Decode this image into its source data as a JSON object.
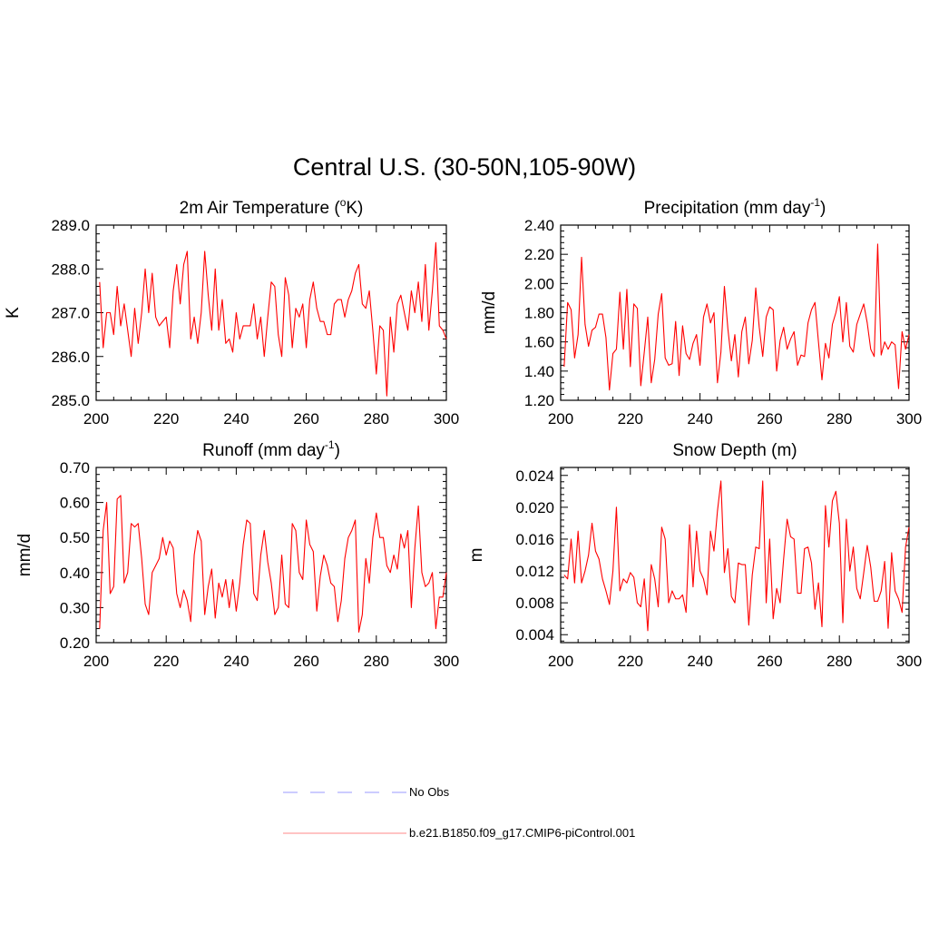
{
  "page": {
    "title": "Central U.S. (30-50N,105-90W)"
  },
  "legend": {
    "items": [
      {
        "label": "No Obs",
        "color": "#9999ff",
        "dash": true
      },
      {
        "label": "b.e21.B1850.f09_g17.CMIP6-piControl.001",
        "color": "#ff8888",
        "dash": false
      }
    ]
  },
  "colors": {
    "series_line": "#ff0000"
  },
  "chart_data": [
    {
      "id": "temp",
      "type": "line",
      "title_main": "2m Air Temperature (",
      "title_sup1": "o",
      "title_post": "K)",
      "ylabel": "K",
      "xlim": [
        200,
        300
      ],
      "ylim": [
        285.0,
        289.0
      ],
      "xticks": [
        "200",
        "220",
        "240",
        "260",
        "280",
        "300"
      ],
      "yticks": [
        "285.0",
        "286.0",
        "287.0",
        "288.0",
        "289.0"
      ],
      "ytick_values": [
        285,
        286,
        287,
        288,
        289
      ],
      "x_start": 201,
      "series": [
        {
          "values": [
            287.7,
            286.2,
            287.0,
            287.0,
            286.5,
            287.6,
            286.7,
            287.2,
            286.6,
            286.0,
            287.1,
            286.3,
            287.0,
            288.0,
            287.0,
            287.9,
            286.9,
            286.7,
            286.8,
            286.9,
            286.2,
            287.5,
            288.1,
            287.2,
            288.1,
            288.4,
            286.4,
            286.9,
            286.3,
            287.0,
            288.4,
            287.4,
            286.6,
            288.0,
            286.6,
            287.3,
            286.3,
            286.4,
            286.1,
            287.0,
            286.4,
            286.7,
            286.7,
            286.7,
            287.2,
            286.4,
            286.9,
            286.0,
            286.9,
            287.7,
            287.6,
            286.5,
            286.0,
            287.8,
            287.4,
            286.2,
            287.1,
            286.9,
            287.2,
            286.2,
            287.3,
            287.7,
            287.1,
            286.8,
            286.8,
            286.5,
            286.5,
            287.2,
            287.3,
            287.3,
            286.9,
            287.3,
            287.5,
            287.9,
            288.1,
            287.2,
            287.1,
            287.5,
            286.6,
            285.6,
            286.7,
            286.6,
            285.1,
            286.9,
            286.1,
            287.2,
            287.4,
            287.0,
            286.6,
            287.5,
            287.0,
            287.7,
            286.8,
            288.1,
            286.6,
            287.5,
            288.6,
            286.7,
            286.6,
            286.4
          ]
        }
      ]
    },
    {
      "id": "precip",
      "type": "line",
      "title_main": "Precipitation (mm day",
      "title_sup1": "-1",
      "title_post": ")",
      "ylabel": "mm/d",
      "xlim": [
        200,
        300
      ],
      "ylim": [
        1.2,
        2.4
      ],
      "xticks": [
        "200",
        "220",
        "240",
        "260",
        "280",
        "300"
      ],
      "yticks": [
        "1.20",
        "1.40",
        "1.60",
        "1.80",
        "2.00",
        "2.20",
        "2.40"
      ],
      "ytick_values": [
        1.2,
        1.4,
        1.6,
        1.8,
        2.0,
        2.2,
        2.4
      ],
      "x_start": 201,
      "series": [
        {
          "values": [
            1.43,
            1.87,
            1.82,
            1.49,
            1.65,
            2.18,
            1.72,
            1.57,
            1.68,
            1.7,
            1.79,
            1.79,
            1.63,
            1.27,
            1.52,
            1.55,
            1.94,
            1.55,
            1.96,
            1.43,
            1.86,
            1.83,
            1.3,
            1.53,
            1.77,
            1.32,
            1.48,
            1.79,
            1.93,
            1.49,
            1.44,
            1.45,
            1.74,
            1.37,
            1.71,
            1.52,
            1.48,
            1.59,
            1.65,
            1.44,
            1.77,
            1.86,
            1.73,
            1.8,
            1.32,
            1.53,
            1.98,
            1.69,
            1.47,
            1.65,
            1.36,
            1.67,
            1.77,
            1.45,
            1.61,
            1.97,
            1.7,
            1.5,
            1.77,
            1.84,
            1.82,
            1.4,
            1.61,
            1.7,
            1.55,
            1.62,
            1.67,
            1.44,
            1.51,
            1.5,
            1.73,
            1.82,
            1.87,
            1.6,
            1.34,
            1.59,
            1.49,
            1.72,
            1.8,
            1.91,
            1.6,
            1.87,
            1.57,
            1.53,
            1.72,
            1.79,
            1.86,
            1.73,
            1.55,
            1.5,
            2.27,
            1.51,
            1.6,
            1.55,
            1.6,
            1.58,
            1.28,
            1.67,
            1.55,
            1.65
          ]
        }
      ]
    },
    {
      "id": "runoff",
      "type": "line",
      "title_main": "Runoff (mm day",
      "title_sup1": "-1",
      "title_post": ")",
      "ylabel": "mm/d",
      "xlim": [
        200,
        300
      ],
      "ylim": [
        0.2,
        0.7
      ],
      "xticks": [
        "200",
        "220",
        "240",
        "260",
        "280",
        "300"
      ],
      "yticks": [
        "0.20",
        "0.30",
        "0.40",
        "0.50",
        "0.60",
        "0.70"
      ],
      "ytick_values": [
        0.2,
        0.3,
        0.4,
        0.5,
        0.6,
        0.7
      ],
      "x_start": 201,
      "series": [
        {
          "values": [
            0.24,
            0.52,
            0.6,
            0.34,
            0.36,
            0.61,
            0.62,
            0.37,
            0.4,
            0.54,
            0.53,
            0.54,
            0.44,
            0.31,
            0.28,
            0.4,
            0.42,
            0.44,
            0.5,
            0.45,
            0.49,
            0.47,
            0.34,
            0.3,
            0.35,
            0.32,
            0.26,
            0.45,
            0.52,
            0.49,
            0.28,
            0.36,
            0.41,
            0.27,
            0.37,
            0.33,
            0.38,
            0.3,
            0.38,
            0.29,
            0.37,
            0.48,
            0.55,
            0.54,
            0.34,
            0.32,
            0.45,
            0.52,
            0.43,
            0.37,
            0.28,
            0.3,
            0.45,
            0.31,
            0.3,
            0.54,
            0.52,
            0.4,
            0.38,
            0.55,
            0.48,
            0.46,
            0.29,
            0.39,
            0.45,
            0.42,
            0.37,
            0.36,
            0.26,
            0.32,
            0.44,
            0.5,
            0.52,
            0.55,
            0.23,
            0.28,
            0.44,
            0.37,
            0.5,
            0.57,
            0.5,
            0.5,
            0.42,
            0.4,
            0.45,
            0.41,
            0.51,
            0.47,
            0.52,
            0.3,
            0.47,
            0.59,
            0.4,
            0.36,
            0.37,
            0.4,
            0.24,
            0.33,
            0.33,
            0.4
          ]
        }
      ]
    },
    {
      "id": "snow",
      "type": "line",
      "title_main": "Snow Depth (m)",
      "title_sup1": "",
      "title_post": "",
      "ylabel": "m",
      "xlim": [
        200,
        300
      ],
      "ylim": [
        0.003,
        0.025
      ],
      "xticks": [
        "200",
        "220",
        "240",
        "260",
        "280",
        "300"
      ],
      "yticks": [
        "0.004",
        "0.008",
        "0.012",
        "0.016",
        "0.020",
        "0.024"
      ],
      "ytick_values": [
        0.004,
        0.008,
        0.012,
        0.016,
        0.02,
        0.024
      ],
      "x_start": 201,
      "series": [
        {
          "values": [
            0.0115,
            0.011,
            0.016,
            0.0105,
            0.017,
            0.0105,
            0.012,
            0.014,
            0.018,
            0.0145,
            0.0135,
            0.011,
            0.0095,
            0.0078,
            0.012,
            0.02,
            0.0095,
            0.011,
            0.0105,
            0.0118,
            0.0112,
            0.008,
            0.0075,
            0.011,
            0.0045,
            0.0128,
            0.011,
            0.0075,
            0.0175,
            0.016,
            0.008,
            0.0095,
            0.0085,
            0.0085,
            0.009,
            0.0068,
            0.0178,
            0.01,
            0.017,
            0.012,
            0.011,
            0.009,
            0.017,
            0.0145,
            0.0195,
            0.0233,
            0.0118,
            0.0148,
            0.0088,
            0.008,
            0.013,
            0.0128,
            0.0128,
            0.0052,
            0.0115,
            0.015,
            0.0148,
            0.0233,
            0.008,
            0.016,
            0.006,
            0.0098,
            0.008,
            0.0135,
            0.0185,
            0.0163,
            0.016,
            0.0092,
            0.0092,
            0.0148,
            0.015,
            0.013,
            0.0072,
            0.0105,
            0.005,
            0.0202,
            0.015,
            0.0208,
            0.022,
            0.018,
            0.0055,
            0.0185,
            0.012,
            0.015,
            0.0098,
            0.0085,
            0.0118,
            0.0152,
            0.0125,
            0.0082,
            0.0082,
            0.0095,
            0.0132,
            0.0048,
            0.0143,
            0.0095,
            0.0085,
            0.0068,
            0.015,
            0.0175
          ]
        }
      ]
    }
  ]
}
